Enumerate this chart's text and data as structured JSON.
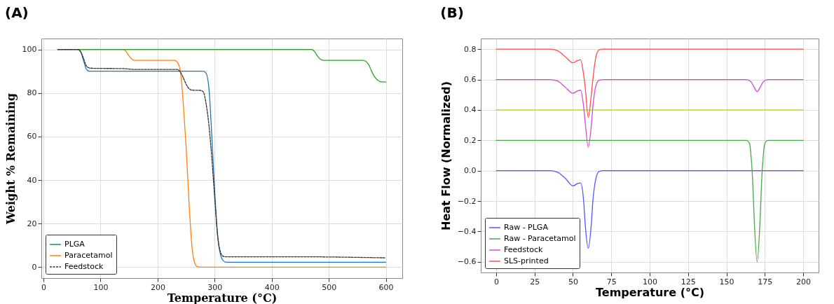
{
  "chart_data": [
    {
      "type": "line",
      "title": "(A)",
      "xlabel": "Temperature (°C)",
      "ylabel": "Weight % Remaining",
      "xlim": [
        -3.75,
        628.75
      ],
      "ylim": [
        -5,
        105
      ],
      "xticks": [
        0,
        100,
        200,
        300,
        400,
        500,
        600
      ],
      "yticks": [
        0,
        20,
        40,
        60,
        80,
        100
      ],
      "grid": true,
      "legend": "bottom left",
      "series": [
        {
          "name": "PLGA",
          "color": "#1f77b4",
          "x": [
            25,
            60,
            65,
            70,
            75,
            80,
            90,
            280,
            285,
            290,
            295,
            300,
            305,
            310,
            315,
            320,
            600
          ],
          "values": [
            100,
            100,
            99,
            95,
            91,
            90,
            90,
            90,
            89,
            82,
            60,
            35,
            15,
            6,
            3,
            2.3,
            2.3
          ]
        },
        {
          "name": "Paracetamol",
          "color": "#ff7f0e",
          "x": [
            25,
            140,
            145,
            150,
            155,
            160,
            230,
            235,
            240,
            245,
            250,
            255,
            260,
            265,
            270,
            280,
            600
          ],
          "values": [
            100,
            100,
            99,
            97,
            95.5,
            95,
            95,
            94,
            90,
            75,
            55,
            30,
            10,
            2,
            0.2,
            0,
            0
          ]
        },
        {
          "color": "#2ca02c",
          "x": [
            25,
            470,
            475,
            480,
            485,
            490,
            560,
            565,
            570,
            575,
            580,
            585,
            590,
            600
          ],
          "values": [
            100,
            100,
            99,
            97,
            95.5,
            95,
            95,
            94.5,
            93,
            90,
            87.5,
            86,
            85.2,
            85
          ]
        },
        {
          "name": "Feedstock",
          "color": "#333333",
          "line_style": "dashed",
          "x": [
            25,
            60,
            65,
            70,
            75,
            80,
            90,
            140,
            160,
            235,
            240,
            245,
            250,
            255,
            260,
            275,
            280,
            285,
            290,
            295,
            300,
            305,
            310,
            315,
            320,
            460,
            500,
            600
          ],
          "values": [
            100,
            100,
            99,
            96,
            92.5,
            91.5,
            91.3,
            91.2,
            90.8,
            90.8,
            89.5,
            87,
            84,
            82,
            81.3,
            81.2,
            80.5,
            75,
            65,
            50,
            32,
            15,
            7,
            5,
            4.8,
            4.8,
            4.7,
            4.3
          ]
        }
      ]
    },
    {
      "type": "line",
      "title": "(B)",
      "xlabel": "Temperature (°C)",
      "ylabel": "Heat Flow (Normalized)",
      "xlim": [
        -10,
        210
      ],
      "ylim": [
        -0.67,
        0.87
      ],
      "xticks": [
        0,
        25,
        50,
        75,
        100,
        125,
        150,
        175,
        200
      ],
      "yticks": [
        {
          "value": -0.6,
          "label": "−0.6"
        },
        {
          "value": -0.4,
          "label": "−0.4"
        },
        {
          "value": -0.2,
          "label": "−0.2"
        },
        {
          "value": 0,
          "label": "0.0"
        },
        {
          "value": 0.2,
          "label": "0.2"
        },
        {
          "value": 0.4,
          "label": "0.4"
        },
        {
          "value": 0.6,
          "label": "0.6"
        },
        {
          "value": 0.8,
          "label": "0.8"
        }
      ],
      "grid": true,
      "legend": "bottom left",
      "series": [
        {
          "name": "Raw - PLGA",
          "color": "#5555ff",
          "x": [
            0,
            35,
            40,
            45,
            50,
            53,
            55,
            57,
            58,
            60,
            62,
            63,
            65,
            67,
            70,
            200
          ],
          "values": [
            0,
            0,
            -0.01,
            -0.05,
            -0.1,
            -0.085,
            -0.08,
            -0.2,
            -0.35,
            -0.51,
            -0.35,
            -0.2,
            -0.05,
            -0.005,
            0,
            0
          ]
        },
        {
          "name": "Raw - Paracetamol",
          "color": "#4ca64c",
          "x": [
            0,
            163,
            165,
            166,
            167,
            168,
            170,
            172,
            173,
            174,
            175,
            177,
            200
          ],
          "values": [
            0.2,
            0.2,
            0.18,
            0.1,
            -0.05,
            -0.3,
            -0.6,
            -0.3,
            -0.05,
            0.1,
            0.18,
            0.2,
            0.2
          ]
        },
        {
          "color": "#cccc33",
          "x": [
            0,
            200
          ],
          "values": [
            0.4,
            0.4
          ]
        },
        {
          "name": "Feedstock",
          "color": "#d24dd2",
          "x": [
            0,
            35,
            40,
            45,
            50,
            53,
            55,
            57,
            58,
            60,
            62,
            63,
            65,
            67,
            70,
            163,
            166,
            168,
            170,
            172,
            174,
            177,
            200
          ],
          "values": [
            0.6,
            0.6,
            0.59,
            0.55,
            0.51,
            0.525,
            0.53,
            0.42,
            0.32,
            0.155,
            0.3,
            0.42,
            0.56,
            0.595,
            0.6,
            0.6,
            0.585,
            0.55,
            0.52,
            0.55,
            0.585,
            0.6,
            0.6
          ]
        },
        {
          "name": "SLS-printed",
          "color": "#ff4d4d",
          "x": [
            0,
            35,
            40,
            45,
            50,
            53,
            55,
            57,
            58,
            60,
            62,
            63,
            65,
            67,
            70,
            200
          ],
          "values": [
            0.8,
            0.8,
            0.79,
            0.75,
            0.71,
            0.725,
            0.73,
            0.63,
            0.55,
            0.35,
            0.5,
            0.6,
            0.75,
            0.795,
            0.8,
            0.8
          ]
        }
      ]
    }
  ]
}
